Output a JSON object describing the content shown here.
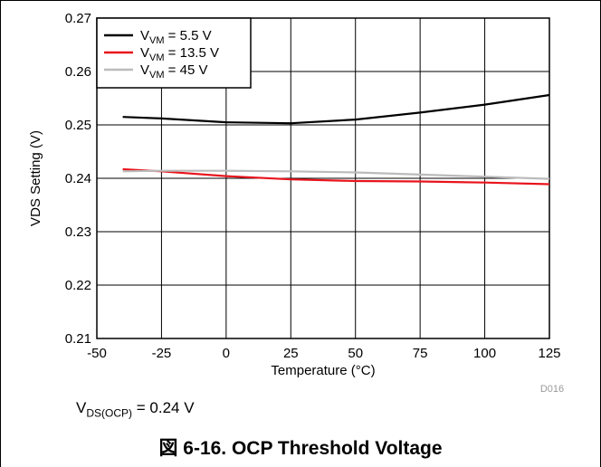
{
  "chart_data": {
    "type": "line",
    "title": "",
    "xlabel": "Temperature (°C)",
    "ylabel": "VDS Setting (V)",
    "xlim": [
      -50,
      125
    ],
    "ylim": [
      0.21,
      0.27
    ],
    "x_ticks": [
      "-50",
      "-25",
      "0",
      "25",
      "50",
      "75",
      "100",
      "125"
    ],
    "y_ticks": [
      "0.21",
      "0.22",
      "0.23",
      "0.24",
      "0.25",
      "0.26",
      "0.27"
    ],
    "grid": true,
    "legend_position": "top-left",
    "figure_id": "D016",
    "series": [
      {
        "name_main": "V",
        "name_sub": "VM",
        "name_rest": " = 5.5 V",
        "color": "#000000",
        "x": [
          -40,
          -25,
          0,
          25,
          50,
          75,
          100,
          125
        ],
        "y": [
          0.2515,
          0.2512,
          0.2505,
          0.2503,
          0.251,
          0.2523,
          0.2538,
          0.2556
        ]
      },
      {
        "name_main": "V",
        "name_sub": "VM",
        "name_rest": " = 13.5 V",
        "color": "#e8141c",
        "x": [
          -40,
          -25,
          0,
          25,
          50,
          75,
          100,
          125
        ],
        "y": [
          0.2417,
          0.2413,
          0.2404,
          0.2398,
          0.2395,
          0.2394,
          0.2392,
          0.2389
        ]
      },
      {
        "name_main": "V",
        "name_sub": "VM",
        "name_rest": " = 45 V",
        "color": "#bbbbbb",
        "x": [
          -40,
          -25,
          0,
          25,
          50,
          75,
          100,
          125
        ],
        "y": [
          0.2413,
          0.2414,
          0.2414,
          0.2413,
          0.2411,
          0.2407,
          0.2403,
          0.2399
        ]
      }
    ]
  },
  "note": {
    "main": "V",
    "sub": "DS(OCP)",
    "rest": " = 0.24 V"
  },
  "caption": "図 6-16. OCP Threshold Voltage"
}
